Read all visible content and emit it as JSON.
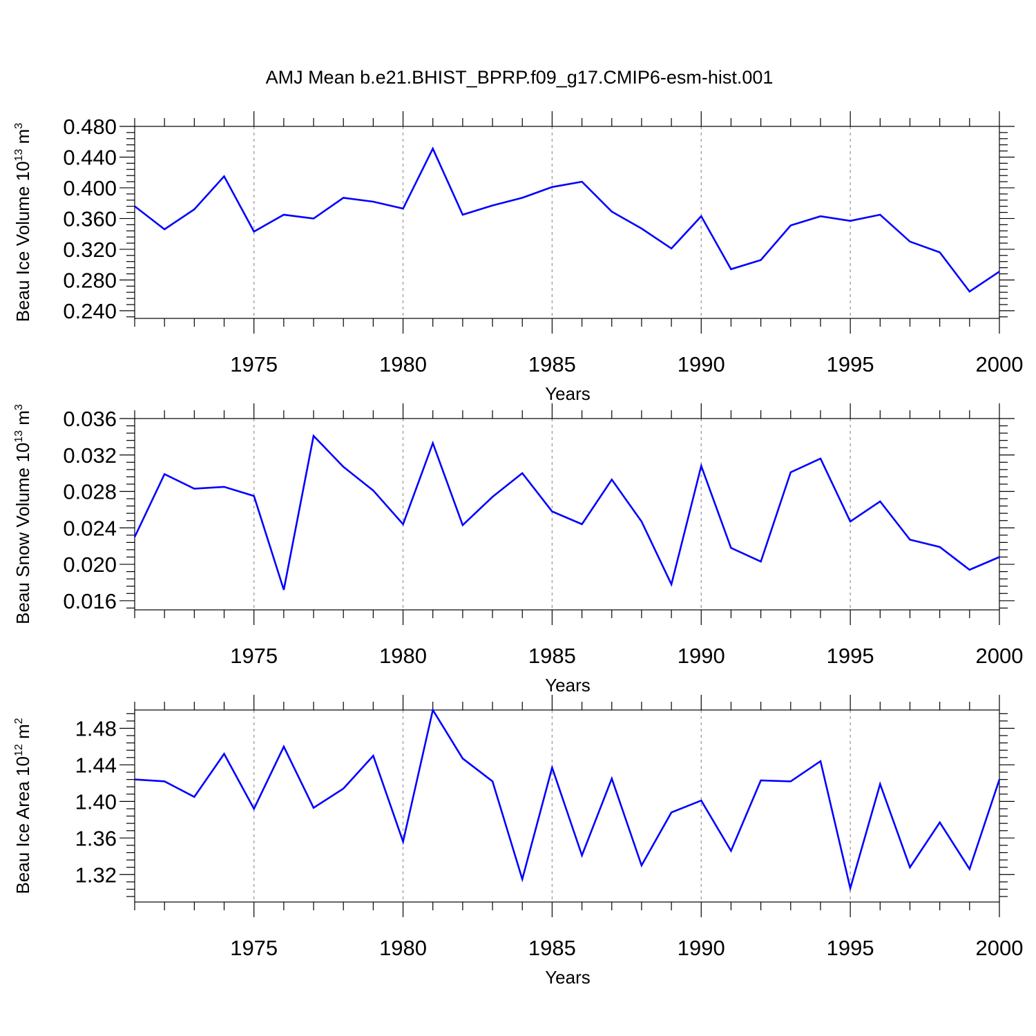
{
  "title": "AMJ Mean b.e21.BHIST_BPRP.f09_g17.CMIP6-esm-hist.001",
  "colors": {
    "line": "#0000ff",
    "axis": "#000000",
    "grid": "#999999"
  },
  "chart_data": [
    {
      "type": "line",
      "xlabel": "Years",
      "ylabel": {
        "base": "Beau Ice Volume 10",
        "exp": "13",
        "unit": " m",
        "unit_exp": "3"
      },
      "xlim": [
        1971,
        2000
      ],
      "ylim": [
        0.23,
        0.48
      ],
      "x_ticks": [
        "1975",
        "1980",
        "1985",
        "1990",
        "1995",
        "2000"
      ],
      "y_ticks": [
        "0.240",
        "0.280",
        "0.320",
        "0.360",
        "0.400",
        "0.440",
        "0.480"
      ],
      "grid": "vertical dashed lines at labeled years",
      "x": [
        1971,
        1972,
        1973,
        1974,
        1975,
        1976,
        1977,
        1978,
        1979,
        1980,
        1981,
        1982,
        1983,
        1984,
        1985,
        1986,
        1987,
        1988,
        1989,
        1990,
        1991,
        1992,
        1993,
        1994,
        1995,
        1996,
        1997,
        1998,
        1999,
        2000
      ],
      "series": [
        {
          "values": [
            0.376,
            0.346,
            0.372,
            0.415,
            0.343,
            0.365,
            0.36,
            0.387,
            0.382,
            0.373,
            0.451,
            0.365,
            0.377,
            0.387,
            0.401,
            0.408,
            0.369,
            0.347,
            0.321,
            0.363,
            0.294,
            0.306,
            0.351,
            0.363,
            0.357,
            0.365,
            0.33,
            0.316,
            0.265,
            0.291
          ]
        }
      ]
    },
    {
      "type": "line",
      "xlabel": "Years",
      "ylabel": {
        "base": "Beau Snow Volume 10",
        "exp": "13",
        "unit": " m",
        "unit_exp": "3"
      },
      "xlim": [
        1971,
        2000
      ],
      "ylim": [
        0.015,
        0.036
      ],
      "x_ticks": [
        "1975",
        "1980",
        "1985",
        "1990",
        "1995",
        "2000"
      ],
      "y_ticks": [
        "0.016",
        "0.020",
        "0.024",
        "0.028",
        "0.032",
        "0.036"
      ],
      "grid": "vertical dashed lines at labeled years",
      "x": [
        1971,
        1972,
        1973,
        1974,
        1975,
        1976,
        1977,
        1978,
        1979,
        1980,
        1981,
        1982,
        1983,
        1984,
        1985,
        1986,
        1987,
        1988,
        1989,
        1990,
        1991,
        1992,
        1993,
        1994,
        1995,
        1996,
        1997,
        1998,
        1999,
        2000
      ],
      "series": [
        {
          "values": [
            0.023,
            0.0299,
            0.0283,
            0.0285,
            0.0275,
            0.0172,
            0.0341,
            0.0307,
            0.0281,
            0.0244,
            0.0333,
            0.0243,
            0.0274,
            0.03,
            0.0258,
            0.0244,
            0.0293,
            0.0247,
            0.0178,
            0.0308,
            0.0218,
            0.0203,
            0.0301,
            0.0316,
            0.0247,
            0.0269,
            0.0227,
            0.0219,
            0.0194,
            0.0208
          ]
        }
      ]
    },
    {
      "type": "line",
      "xlabel": "Years",
      "ylabel": {
        "base": "Beau Ice Area 10",
        "exp": "12",
        "unit": " m",
        "unit_exp": "2"
      },
      "xlim": [
        1971,
        2000
      ],
      "ylim": [
        1.29,
        1.5
      ],
      "x_ticks": [
        "1975",
        "1980",
        "1985",
        "1990",
        "1995",
        "2000"
      ],
      "y_ticks": [
        "1.32",
        "1.36",
        "1.40",
        "1.44",
        "1.48"
      ],
      "grid": "vertical dashed lines at labeled years",
      "x": [
        1971,
        1972,
        1973,
        1974,
        1975,
        1976,
        1977,
        1978,
        1979,
        1980,
        1981,
        1982,
        1983,
        1984,
        1985,
        1986,
        1987,
        1988,
        1989,
        1990,
        1991,
        1992,
        1993,
        1994,
        1995,
        1996,
        1997,
        1998,
        1999,
        2000
      ],
      "series": [
        {
          "values": [
            1.424,
            1.422,
            1.405,
            1.452,
            1.392,
            1.46,
            1.393,
            1.414,
            1.45,
            1.356,
            1.5,
            1.447,
            1.422,
            1.315,
            1.437,
            1.341,
            1.425,
            1.33,
            1.388,
            1.401,
            1.346,
            1.423,
            1.422,
            1.444,
            1.305,
            1.419,
            1.328,
            1.377,
            1.326,
            1.424
          ]
        }
      ]
    }
  ]
}
